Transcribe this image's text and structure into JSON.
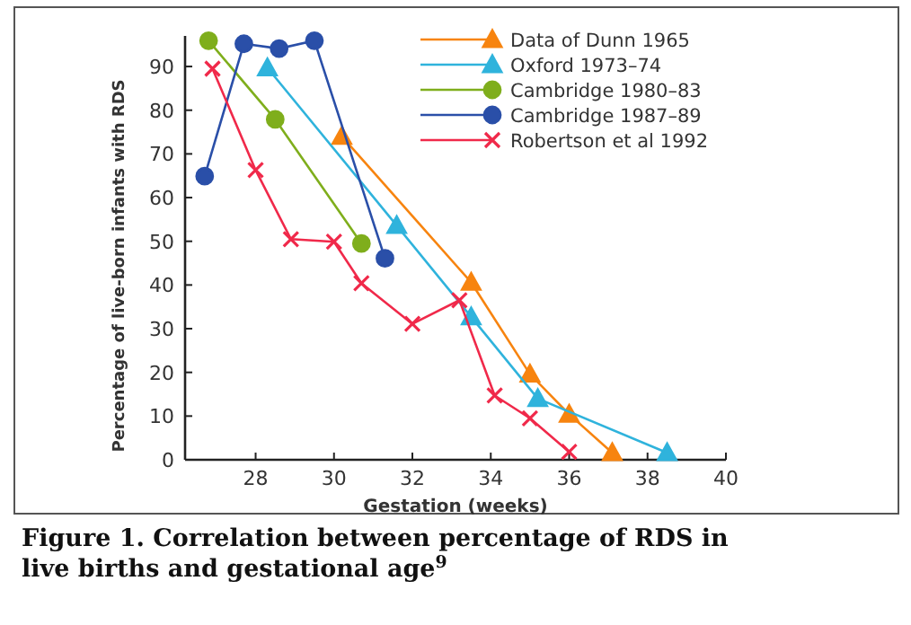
{
  "chart_data": {
    "type": "line",
    "xlabel": "Gestation (weeks)",
    "ylabel": "Percentage of live-born infants with RDS",
    "xlim": [
      26.2,
      40
    ],
    "xticks": [
      28,
      30,
      32,
      34,
      36,
      38,
      40
    ],
    "ylim": [
      0,
      97
    ],
    "yticks": [
      0,
      10,
      20,
      30,
      40,
      50,
      60,
      70,
      80,
      90
    ],
    "legend": "top right",
    "grid": false,
    "series": [
      {
        "name": "Data of Dunn 1965",
        "color": "#f7840f",
        "marker": "triangle",
        "x": [
          30.2,
          33.5,
          35.0,
          36.0,
          37.1
        ],
        "values": [
          74,
          40.6,
          19.6,
          10.4,
          1.6
        ]
      },
      {
        "name": "Oxford 1973–74",
        "color": "#2fb3dc",
        "marker": "triangle",
        "x": [
          28.3,
          31.6,
          33.5,
          35.2,
          38.5
        ],
        "values": [
          89.7,
          53.6,
          32.7,
          14,
          1.6
        ]
      },
      {
        "name": "Cambridge 1980–83",
        "color": "#7fae1c",
        "marker": "circle",
        "x": [
          26.8,
          28.5,
          30.7
        ],
        "values": [
          95.9,
          77.9,
          49.5
        ]
      },
      {
        "name": "Cambridge 1987–89",
        "color": "#2a4fa8",
        "marker": "circle",
        "x": [
          26.7,
          27.7,
          28.6,
          29.5,
          31.3
        ],
        "values": [
          64.9,
          95.2,
          94.1,
          95.9,
          46.1
        ]
      },
      {
        "name": "Robertson et al 1992",
        "color": "#f0294a",
        "marker": "cross",
        "x": [
          26.9,
          28.0,
          28.9,
          30.0,
          30.7,
          32.0,
          33.2,
          34.1,
          35.0,
          36.0
        ],
        "values": [
          89.5,
          66.3,
          50.5,
          49.9,
          40.4,
          31.1,
          36.5,
          14.7,
          9.5,
          1.8
        ]
      }
    ],
    "annotations": [
      "Figure 1. Correlation between percentage of RDS in live births and gestational age$^{9}$"
    ]
  }
}
